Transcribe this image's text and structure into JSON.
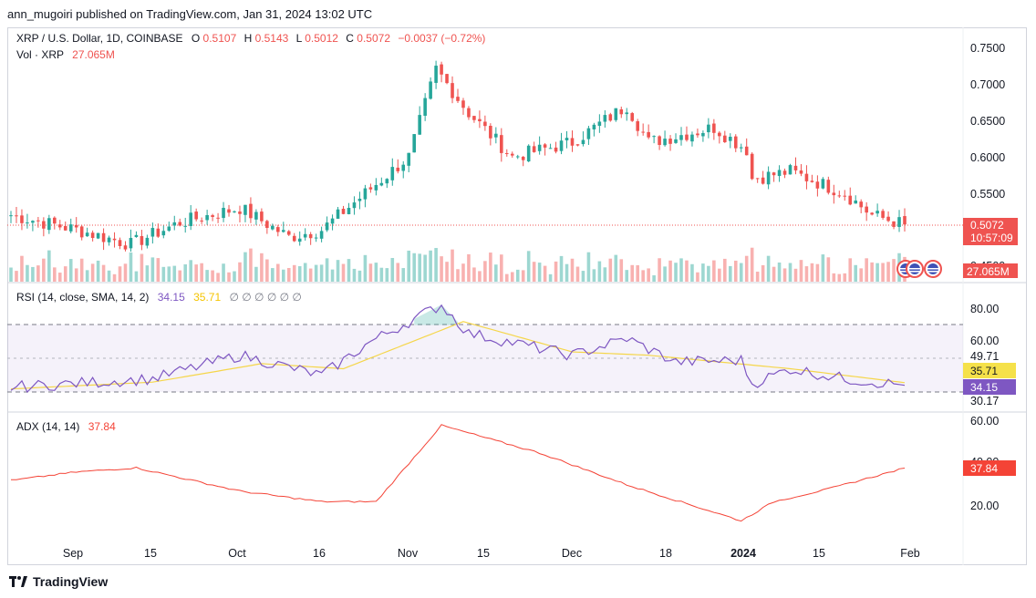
{
  "header": {
    "publisher_line": "ann_mugoiri published on TradingView.com, Jan 31, 2024 13:02 UTC"
  },
  "main_pane": {
    "symbol": "XRP / U.S. Dollar, 1D, COINBASE",
    "o_label": "O",
    "o_value": "0.5107",
    "h_label": "H",
    "h_value": "0.5143",
    "l_label": "L",
    "l_value": "0.5012",
    "c_label": "C",
    "c_value": "0.5072",
    "change": "−0.0037 (−0.72%)",
    "vol_label": "Vol · XRP",
    "vol_value": "27.065M",
    "price_ticks": [
      "0.7500",
      "0.7000",
      "0.6500",
      "0.6000",
      "0.5500"
    ],
    "partial_tick": "0.4500",
    "last_price_badge": "0.5072",
    "countdown_badge": "10:57:09",
    "volume_badge": "27.065M"
  },
  "rsi_pane": {
    "label": "RSI (14, close, SMA, 14, 2)",
    "rsi_value": "34.15",
    "sma_value": "35.71",
    "placeholders": "∅ ∅ ∅ ∅ ∅ ∅",
    "ticks": [
      "80.00",
      "60.00",
      "49.71",
      "30.17"
    ],
    "badge_sma": "35.71",
    "badge_rsi": "34.15"
  },
  "adx_pane": {
    "label": "ADX (14, 14)",
    "value": "37.84",
    "ticks": [
      "60.00",
      "20.00"
    ],
    "partial_tick": "40.00",
    "badge": "37.84"
  },
  "time_axis": [
    "Sep",
    "15",
    "Oct",
    "16",
    "Nov",
    "15",
    "Dec",
    "18",
    "2024",
    "15",
    "Feb"
  ],
  "footer": {
    "brand": "TradingView"
  },
  "colors": {
    "up": "#26a69a",
    "down": "#ef5350",
    "rsi": "#7e57c2",
    "rsi_sma": "#f5d64a",
    "adx": "#f44336"
  },
  "chart_data": [
    {
      "type": "candlestick",
      "title": "XRP / U.S. Dollar, 1D, COINBASE",
      "x_range": [
        "2023-08-20",
        "2024-01-31"
      ],
      "ylim": [
        0.45,
        0.76
      ],
      "last_close": 0.5072,
      "key_points": [
        {
          "date": "2023-08-20",
          "close": 0.52
        },
        {
          "date": "2023-09-01",
          "close": 0.5
        },
        {
          "date": "2023-09-11",
          "close": 0.48
        },
        {
          "date": "2023-09-20",
          "close": 0.51
        },
        {
          "date": "2023-10-01",
          "close": 0.53
        },
        {
          "date": "2023-10-10",
          "close": 0.49
        },
        {
          "date": "2023-10-16",
          "close": 0.5
        },
        {
          "date": "2023-10-24",
          "close": 0.55
        },
        {
          "date": "2023-11-01",
          "close": 0.6
        },
        {
          "date": "2023-11-06",
          "close": 0.72
        },
        {
          "date": "2023-11-12",
          "close": 0.66
        },
        {
          "date": "2023-11-20",
          "close": 0.6
        },
        {
          "date": "2023-12-01",
          "close": 0.62
        },
        {
          "date": "2023-12-11",
          "close": 0.67
        },
        {
          "date": "2023-12-15",
          "close": 0.62
        },
        {
          "date": "2023-12-27",
          "close": 0.64
        },
        {
          "date": "2024-01-02",
          "close": 0.61
        },
        {
          "date": "2024-01-03",
          "close": 0.57
        },
        {
          "date": "2024-01-10",
          "close": 0.58
        },
        {
          "date": "2024-01-20",
          "close": 0.55
        },
        {
          "date": "2024-01-25",
          "close": 0.52
        },
        {
          "date": "2024-01-31",
          "close": 0.5072
        }
      ]
    },
    {
      "type": "line",
      "title": "RSI (14, close, SMA, 14, 2)",
      "ylim": [
        25,
        85
      ],
      "series": [
        {
          "name": "RSI",
          "values_key_points": [
            [
              "2023-08-20",
              33
            ],
            [
              "2023-09-15",
              38
            ],
            [
              "2023-10-01",
              52
            ],
            [
              "2023-10-16",
              40
            ],
            [
              "2023-10-25",
              60
            ],
            [
              "2023-11-07",
              82
            ],
            [
              "2023-11-12",
              65
            ],
            [
              "2023-12-01",
              52
            ],
            [
              "2023-12-11",
              62
            ],
            [
              "2023-12-20",
              48
            ],
            [
              "2024-01-01",
              49
            ],
            [
              "2024-01-03",
              35
            ],
            [
              "2024-01-10",
              44
            ],
            [
              "2024-01-20",
              38
            ],
            [
              "2024-01-31",
              34.15
            ]
          ]
        },
        {
          "name": "SMA",
          "values_key_points": [
            [
              "2023-08-20",
              32
            ],
            [
              "2023-09-15",
              36
            ],
            [
              "2023-10-05",
              47
            ],
            [
              "2023-10-20",
              44
            ],
            [
              "2023-11-11",
              72
            ],
            [
              "2023-12-01",
              54
            ],
            [
              "2023-12-15",
              52
            ],
            [
              "2024-01-10",
              44
            ],
            [
              "2024-01-31",
              35.71
            ]
          ]
        }
      ],
      "bands": [
        30.17,
        49.71,
        70
      ]
    },
    {
      "type": "line",
      "title": "ADX (14, 14)",
      "ylim": [
        8,
        62
      ],
      "series": [
        {
          "name": "ADX",
          "values_key_points": [
            [
              "2023-08-20",
              32
            ],
            [
              "2023-09-01",
              36
            ],
            [
              "2023-09-12",
              38
            ],
            [
              "2023-10-01",
              27
            ],
            [
              "2023-10-16",
              22
            ],
            [
              "2023-10-26",
              22
            ],
            [
              "2023-11-07",
              58
            ],
            [
              "2023-11-25",
              45
            ],
            [
              "2023-12-11",
              30
            ],
            [
              "2024-01-01",
              13
            ],
            [
              "2024-01-07",
              22
            ],
            [
              "2024-01-17",
              28
            ],
            [
              "2024-01-31",
              37.84
            ]
          ]
        }
      ]
    }
  ]
}
